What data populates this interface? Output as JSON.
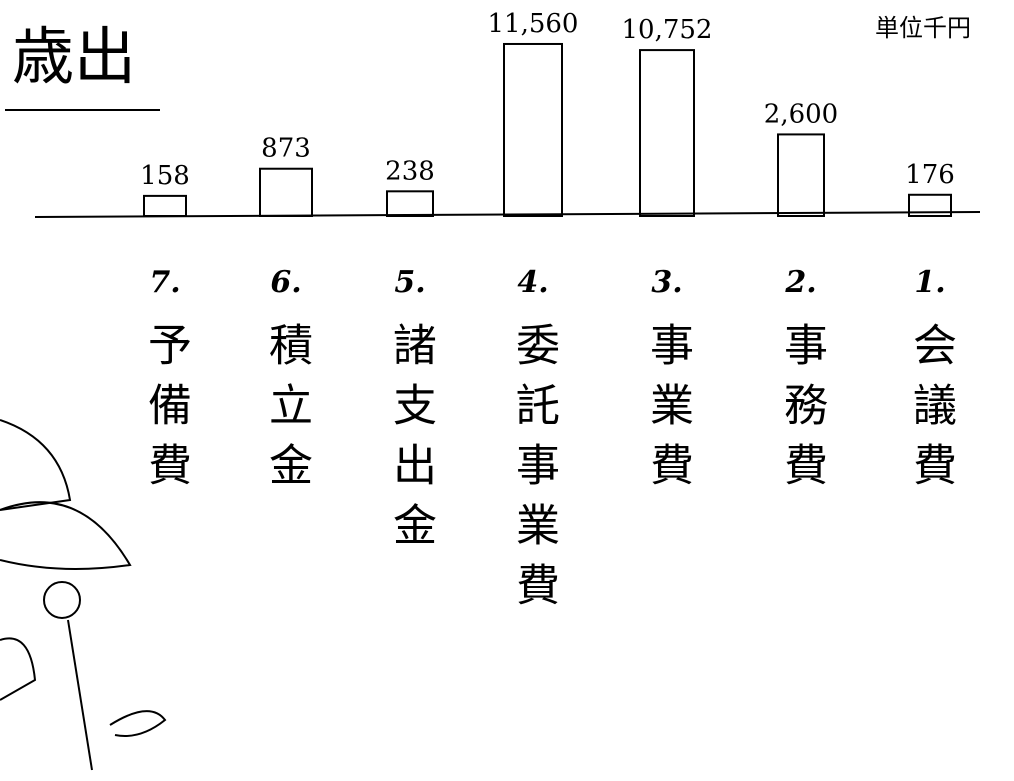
{
  "chart_data": {
    "type": "bar",
    "title": "歳出",
    "unit": "単位千円",
    "scale": "sqrt",
    "color": "#000",
    "numbers": [
      "7.",
      "6.",
      "5.",
      "4.",
      "3.",
      "2.",
      "1."
    ],
    "categories": [
      "予備費",
      "積立金",
      "諸支出金",
      "委託事業費",
      "事業費",
      "事務費",
      "会議費"
    ],
    "values": [
      158,
      873,
      238,
      11560,
      10752,
      2600,
      176
    ],
    "value_labels": [
      "158",
      "873",
      "238",
      "11,560",
      "10,752",
      "2,600",
      "176"
    ]
  }
}
